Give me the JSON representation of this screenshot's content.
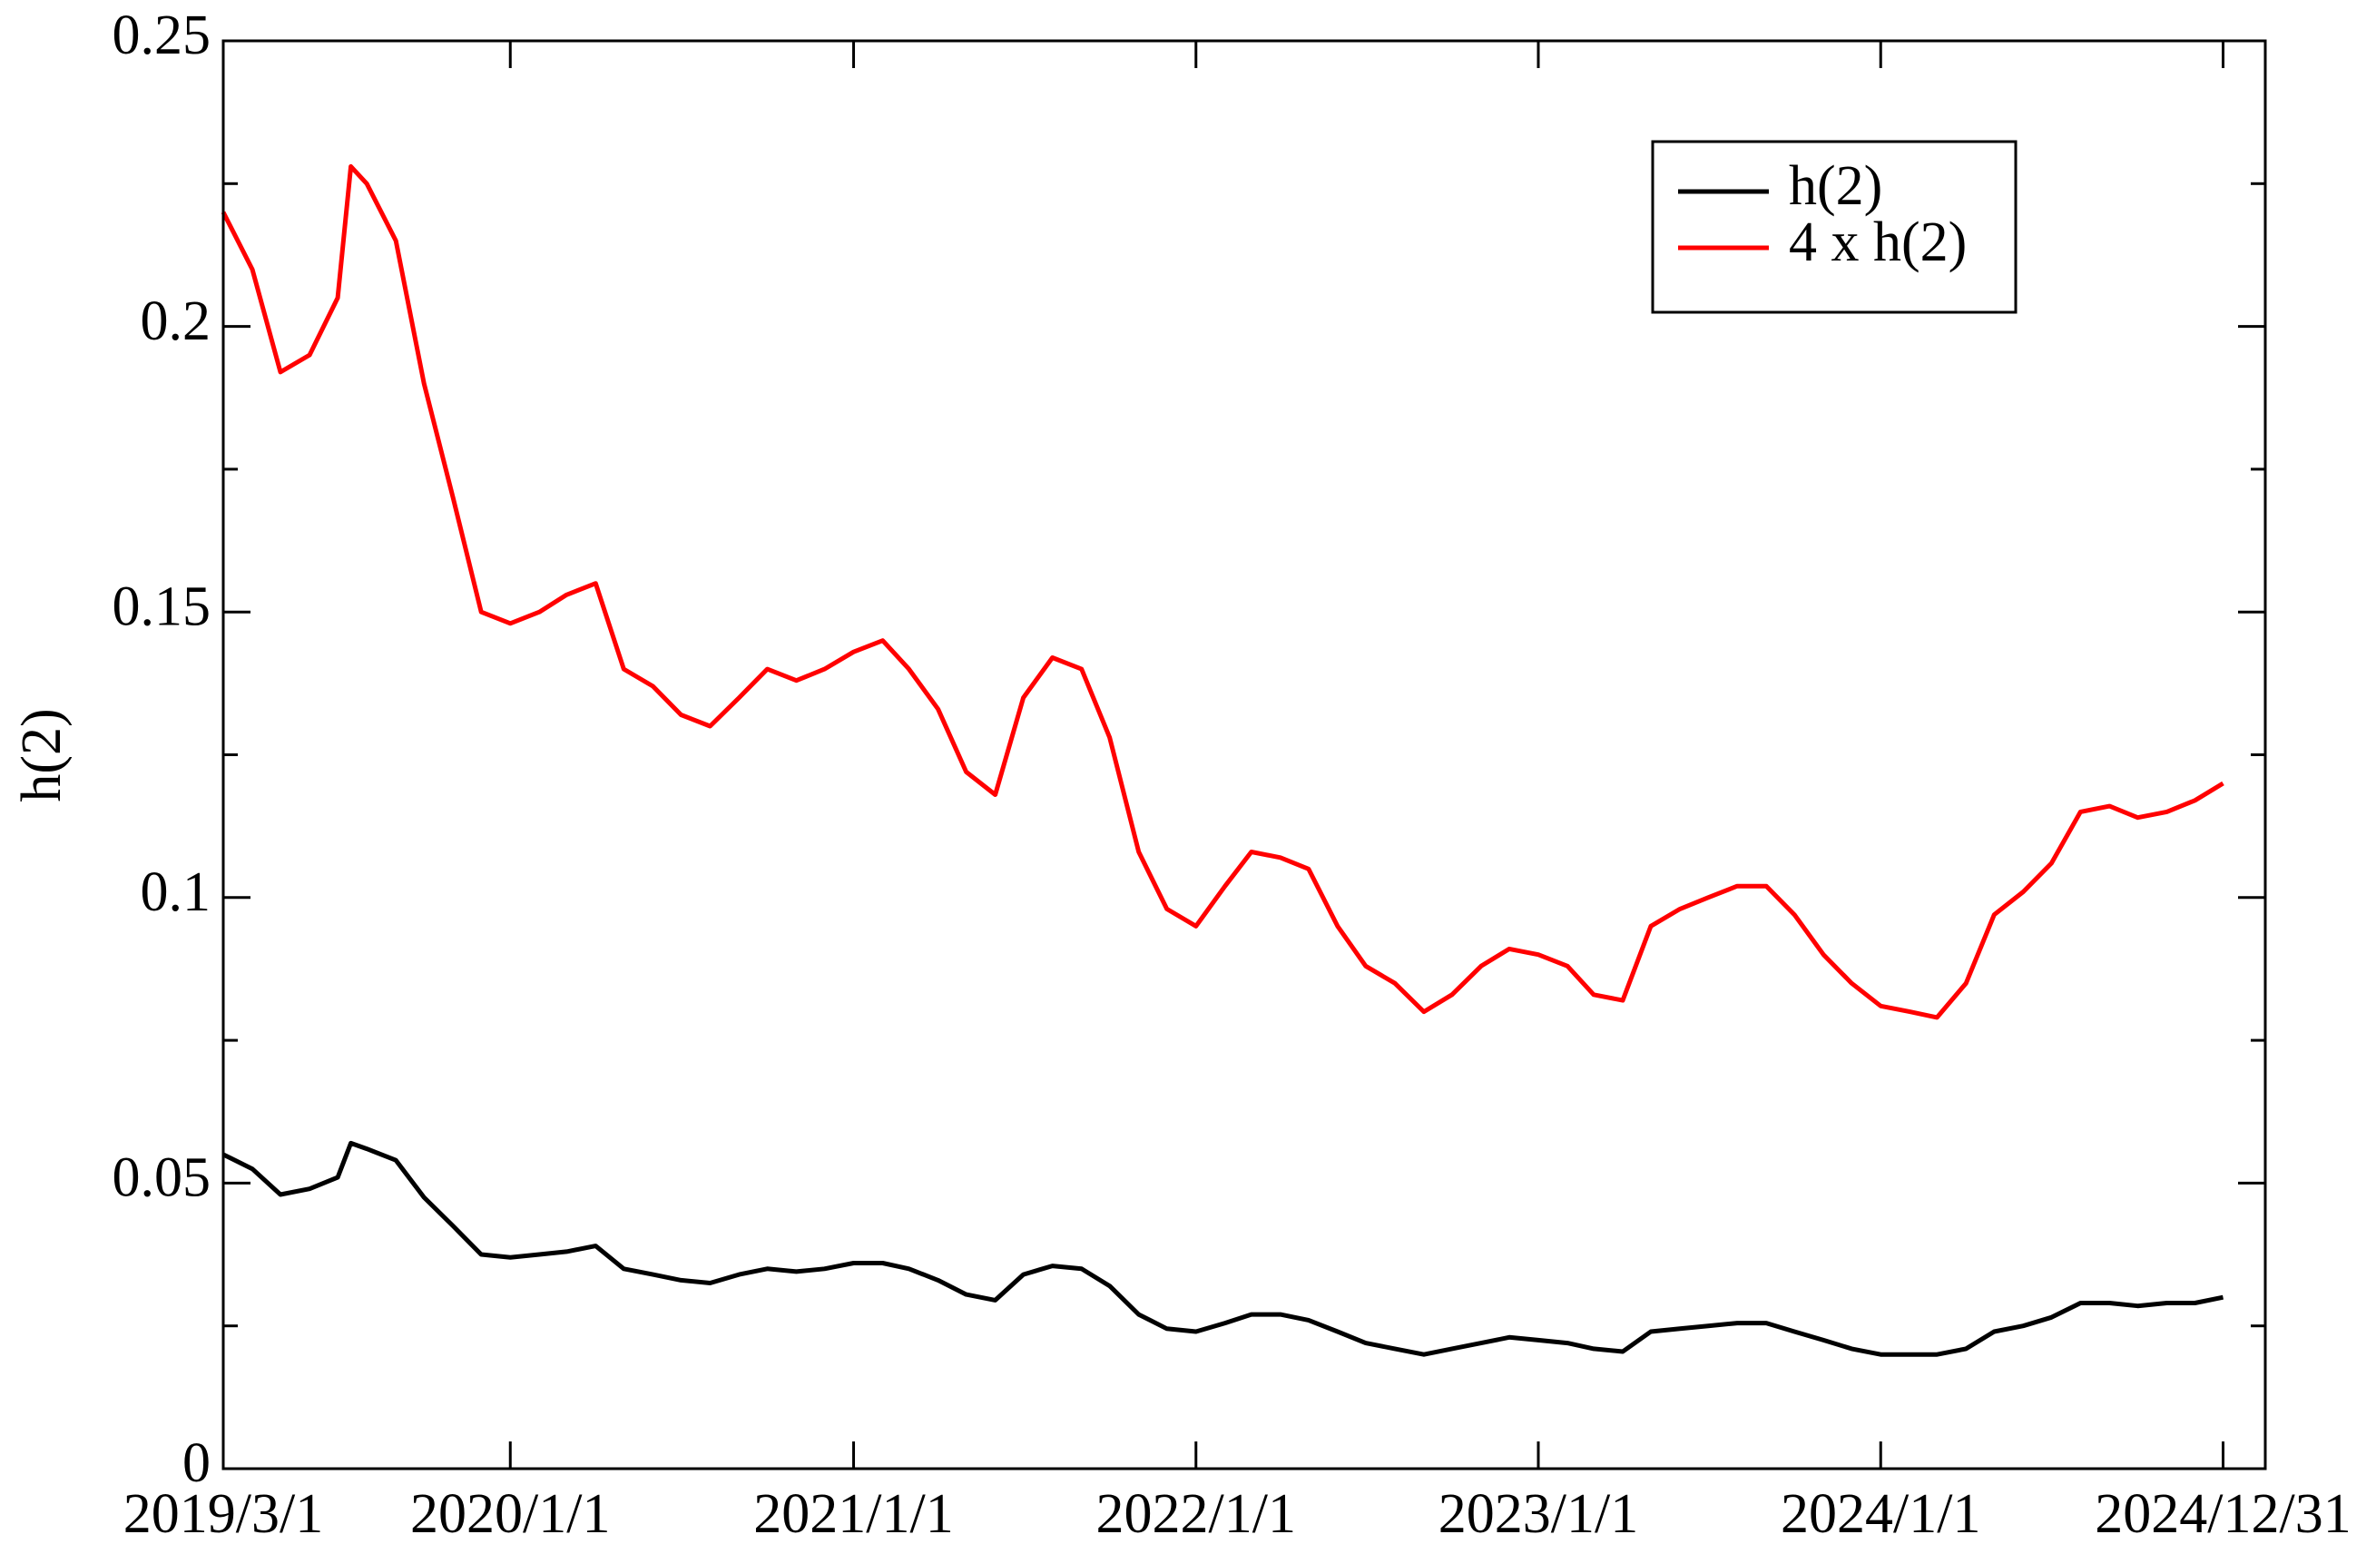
{
  "chart_data": {
    "type": "line",
    "y_label": "h(2)",
    "x": [
      "2019/3/1",
      "2019/4/1",
      "2019/5/1",
      "2019/6/1",
      "2019/7/1",
      "2019/7/15",
      "2019/8/1",
      "2019/9/1",
      "2019/10/1",
      "2019/11/1",
      "2019/12/1",
      "2020/1/1",
      "2020/2/1",
      "2020/3/1",
      "2020/4/1",
      "2020/5/1",
      "2020/6/1",
      "2020/7/1",
      "2020/8/1",
      "2020/9/1",
      "2020/10/1",
      "2020/11/1",
      "2020/12/1",
      "2021/1/1",
      "2021/2/1",
      "2021/3/1",
      "2021/4/1",
      "2021/5/1",
      "2021/6/1",
      "2021/7/1",
      "2021/8/1",
      "2021/9/1",
      "2021/10/1",
      "2021/11/1",
      "2021/12/1",
      "2022/1/1",
      "2022/2/1",
      "2022/3/1",
      "2022/4/1",
      "2022/5/1",
      "2022/6/1",
      "2022/7/1",
      "2022/8/1",
      "2022/9/1",
      "2022/10/1",
      "2022/11/1",
      "2022/12/1",
      "2023/1/1",
      "2023/2/1",
      "2023/3/1",
      "2023/4/1",
      "2023/5/1",
      "2023/6/1",
      "2023/7/1",
      "2023/8/1",
      "2023/9/1",
      "2023/10/1",
      "2023/11/1",
      "2023/12/1",
      "2024/1/1",
      "2024/2/1",
      "2024/3/1",
      "2024/4/1",
      "2024/5/1",
      "2024/6/1",
      "2024/7/1",
      "2024/8/1",
      "2024/9/1",
      "2024/10/1",
      "2024/11/1",
      "2024/12/1",
      "2024/12/31"
    ],
    "series": [
      {
        "name": "h(2)",
        "color": "#000000",
        "values": [
          0.055,
          0.0525,
          0.048,
          0.049,
          0.051,
          0.057,
          0.056,
          0.054,
          0.0475,
          0.0425,
          0.0375,
          0.037,
          0.0375,
          0.038,
          0.039,
          0.035,
          0.034,
          0.033,
          0.0325,
          0.034,
          0.035,
          0.0345,
          0.035,
          0.036,
          0.036,
          0.035,
          0.033,
          0.0305,
          0.0295,
          0.034,
          0.0355,
          0.035,
          0.032,
          0.027,
          0.0245,
          0.024,
          0.0255,
          0.027,
          0.027,
          0.026,
          0.024,
          0.022,
          0.021,
          0.02,
          0.021,
          0.022,
          0.023,
          0.0225,
          0.022,
          0.021,
          0.0205,
          0.024,
          0.0245,
          0.025,
          0.0255,
          0.0255,
          0.024,
          0.0225,
          0.021,
          0.02,
          0.02,
          0.02,
          0.021,
          0.024,
          0.025,
          0.0265,
          0.029,
          0.029,
          0.0285,
          0.029,
          0.029,
          0.03
        ]
      },
      {
        "name": "4 x h(2)",
        "color": "#ff0000",
        "values": [
          0.22,
          0.21,
          0.192,
          0.195,
          0.205,
          0.228,
          0.225,
          0.215,
          0.19,
          0.17,
          0.15,
          0.148,
          0.15,
          0.153,
          0.155,
          0.14,
          0.137,
          0.132,
          0.13,
          0.135,
          0.14,
          0.138,
          0.14,
          0.143,
          0.145,
          0.14,
          0.133,
          0.122,
          0.118,
          0.135,
          0.142,
          0.14,
          0.128,
          0.108,
          0.098,
          0.095,
          0.102,
          0.108,
          0.107,
          0.105,
          0.095,
          0.088,
          0.085,
          0.08,
          0.083,
          0.088,
          0.091,
          0.09,
          0.088,
          0.083,
          0.082,
          0.095,
          0.098,
          0.1,
          0.102,
          0.102,
          0.097,
          0.09,
          0.085,
          0.081,
          0.08,
          0.079,
          0.085,
          0.097,
          0.101,
          0.106,
          0.115,
          0.116,
          0.114,
          0.115,
          0.117,
          0.12
        ]
      }
    ],
    "xlim": [
      "2019/3/1",
      "2025/2/14"
    ],
    "xticks": [
      "2019/3/1",
      "2020/1/1",
      "2021/1/1",
      "2022/1/1",
      "2023/1/1",
      "2024/1/1",
      "2024/12/31"
    ],
    "ylim": [
      0,
      0.25
    ],
    "yticks": [
      0,
      0.05,
      0.1,
      0.15,
      0.2,
      0.25
    ],
    "grid": false,
    "legend": "upper right"
  }
}
